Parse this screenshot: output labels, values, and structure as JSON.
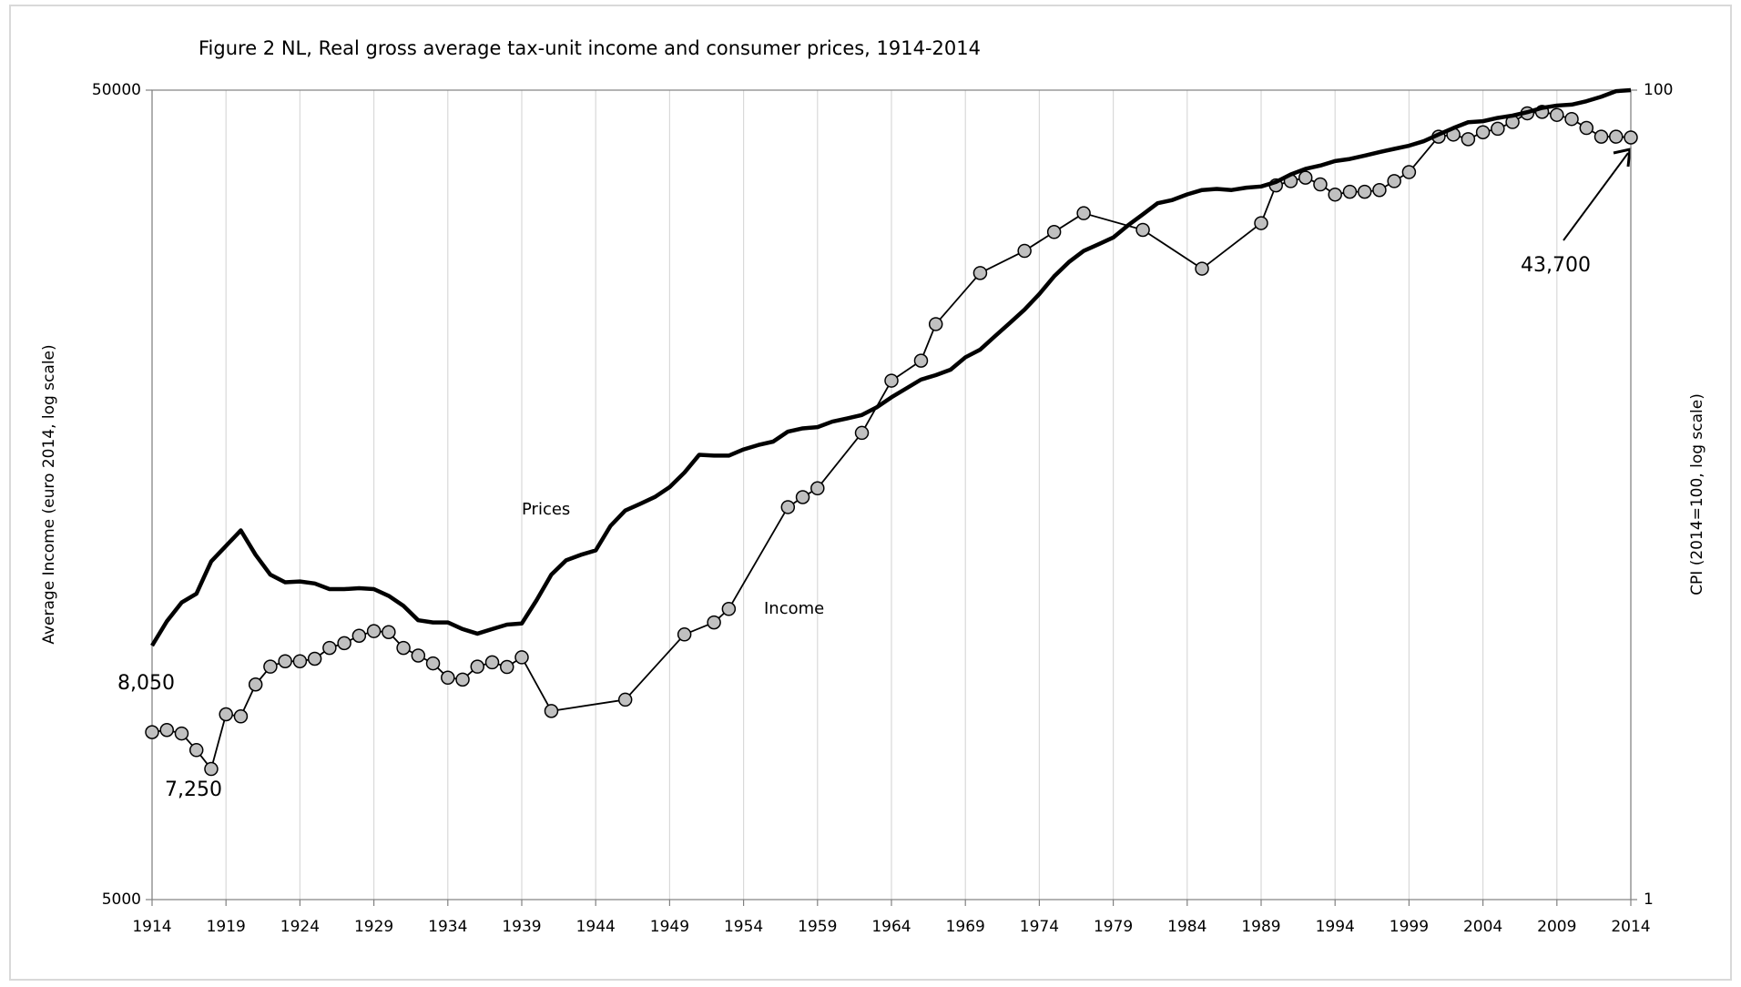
{
  "chart_data": {
    "type": "line",
    "title": "Figure 2 NL, Real gross average tax-unit income and consumer prices, 1914-2014",
    "y_label": "Average Income (euro 2014, log scale)",
    "y2_label": "CPI (2014=100, log scale)",
    "ylim": [
      5000,
      50000
    ],
    "yticks": [
      5000,
      50000
    ],
    "y_scale": "log",
    "y2lim": [
      1,
      100
    ],
    "y2ticks": [
      1,
      100
    ],
    "y2_scale": "log",
    "xlim": [
      1914,
      2014
    ],
    "xticks": [
      1914,
      1919,
      1924,
      1929,
      1934,
      1939,
      1944,
      1949,
      1954,
      1959,
      1964,
      1969,
      1974,
      1979,
      1984,
      1989,
      1994,
      1999,
      2004,
      2009,
      2014
    ],
    "grid": true,
    "series": [
      {
        "name": "Income",
        "color": "#c0c0c0",
        "line_color": "#000000",
        "marker": "circle",
        "x": [
          1914,
          1915,
          1916,
          1917,
          1918,
          1919,
          1920,
          1921,
          1922,
          1923,
          1924,
          1925,
          1926,
          1927,
          1928,
          1929,
          1930,
          1931,
          1932,
          1933,
          1934,
          1935,
          1936,
          1937,
          1938,
          1939,
          1941,
          1946,
          1950,
          1952,
          1953,
          1957,
          1958,
          1959,
          1962,
          1964,
          1966,
          1967,
          1970,
          1973,
          1975,
          1977,
          1981,
          1985,
          1989,
          1990,
          1991,
          1992,
          1993,
          1994,
          1995,
          1996,
          1997,
          1998,
          1999,
          2001,
          2002,
          2003,
          2004,
          2005,
          2006,
          2007,
          2008,
          2009,
          2010,
          2011,
          2012,
          2013,
          2014
        ],
        "values": [
          8050,
          8100,
          8020,
          7650,
          7250,
          8470,
          8420,
          9220,
          9700,
          9850,
          9850,
          9920,
          10230,
          10370,
          10590,
          10730,
          10700,
          10230,
          10010,
          9790,
          9400,
          9350,
          9700,
          9820,
          9690,
          9960,
          8550,
          8830,
          10630,
          11000,
          11430,
          15270,
          15710,
          16110,
          18860,
          21880,
          23160,
          25700,
          29720,
          31650,
          33400,
          35230,
          33600,
          30090,
          34250,
          38130,
          38600,
          38980,
          38240,
          37150,
          37450,
          37450,
          37630,
          38600,
          39600,
          43800,
          44060,
          43490,
          44360,
          44800,
          45660,
          46810,
          47000,
          46600,
          46060,
          44900,
          43800,
          43800,
          43700
        ]
      },
      {
        "name": "Prices",
        "color": "#000000",
        "axis": "y2",
        "x": [
          1914,
          1915,
          1916,
          1917,
          1918,
          1919,
          1920,
          1921,
          1922,
          1923,
          1924,
          1925,
          1926,
          1927,
          1928,
          1929,
          1930,
          1931,
          1932,
          1933,
          1934,
          1935,
          1936,
          1937,
          1938,
          1939,
          1940,
          1941,
          1942,
          1943,
          1944,
          1945,
          1946,
          1947,
          1948,
          1949,
          1950,
          1951,
          1952,
          1953,
          1954,
          1955,
          1956,
          1957,
          1958,
          1959,
          1960,
          1961,
          1962,
          1963,
          1964,
          1965,
          1966,
          1967,
          1968,
          1969,
          1970,
          1971,
          1972,
          1973,
          1974,
          1975,
          1976,
          1977,
          1978,
          1979,
          1980,
          1981,
          1982,
          1983,
          1984,
          1985,
          1986,
          1987,
          1988,
          1989,
          1990,
          1991,
          1992,
          1993,
          1994,
          1995,
          1996,
          1997,
          1998,
          1999,
          2000,
          2001,
          2002,
          2003,
          2004,
          2005,
          2006,
          2007,
          2008,
          2009,
          2010,
          2011,
          2012,
          2013,
          2014
        ],
        "values": [
          4.24,
          4.87,
          5.42,
          5.7,
          6.85,
          7.48,
          8.17,
          7.11,
          6.35,
          6.08,
          6.11,
          6.04,
          5.85,
          5.85,
          5.88,
          5.85,
          5.63,
          5.32,
          4.9,
          4.84,
          4.84,
          4.66,
          4.54,
          4.66,
          4.78,
          4.81,
          5.49,
          6.35,
          6.89,
          7.11,
          7.29,
          8.38,
          9.15,
          9.5,
          9.88,
          10.45,
          11.35,
          12.56,
          12.5,
          12.5,
          12.95,
          13.28,
          13.54,
          14.33,
          14.6,
          14.7,
          15.17,
          15.45,
          15.75,
          16.45,
          17.42,
          18.32,
          19.27,
          19.76,
          20.39,
          21.87,
          22.85,
          24.66,
          26.58,
          28.69,
          31.34,
          34.66,
          37.6,
          40.07,
          41.6,
          43.24,
          46.34,
          49.33,
          52.55,
          53.53,
          55.26,
          56.65,
          57.0,
          56.65,
          57.4,
          57.8,
          59.3,
          61.9,
          63.9,
          65.1,
          66.8,
          67.6,
          68.9,
          70.3,
          71.6,
          72.9,
          74.8,
          77.7,
          80.6,
          83.3,
          83.8,
          85.4,
          86.5,
          88.2,
          90.4,
          91.6,
          92.1,
          93.9,
          96.3,
          99.4,
          100
        ]
      }
    ],
    "annotations": [
      {
        "text": "Prices"
      },
      {
        "text": "Income"
      },
      {
        "text": "8,050"
      },
      {
        "text": "7,250"
      },
      {
        "text": "43,700"
      }
    ]
  }
}
